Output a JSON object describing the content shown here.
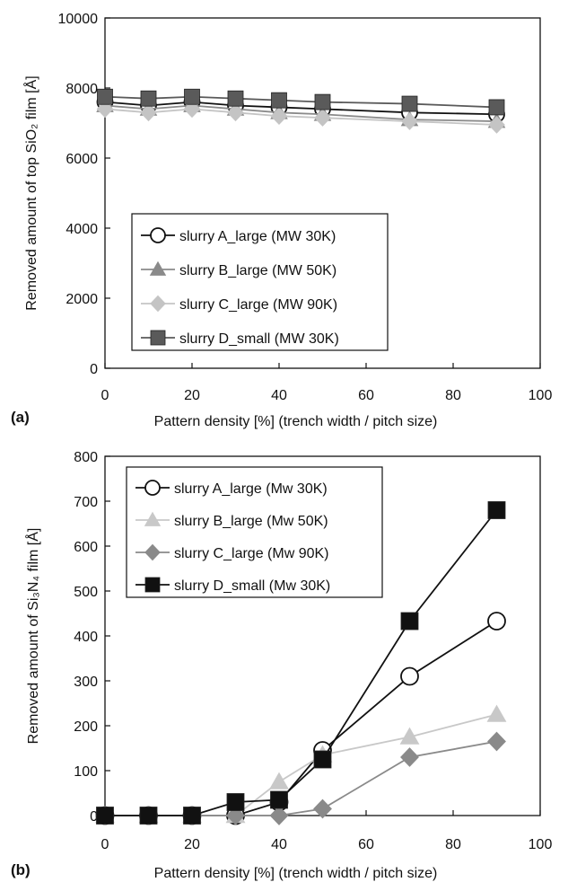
{
  "chart_data": [
    {
      "type": "line",
      "panel_label": "(a)",
      "xlabel": "Pattern density [%] (trench width / pitch size)",
      "ylabel": "Removed amount of top SiO₂ film [Å]",
      "xlim": [
        0,
        100
      ],
      "ylim": [
        0,
        10000
      ],
      "xticks": [
        0,
        20,
        40,
        60,
        80,
        100
      ],
      "yticks": [
        0,
        2000,
        4000,
        6000,
        8000,
        10000
      ],
      "grid": false,
      "legend_position": "lower-left",
      "x": [
        0,
        10,
        20,
        30,
        40,
        50,
        70,
        90
      ],
      "series": [
        {
          "name": "slurry A_large (MW 30K)",
          "marker": "circle-open",
          "color": "#111111",
          "values": [
            7600,
            7500,
            7600,
            7500,
            7450,
            7400,
            7300,
            7250
          ]
        },
        {
          "name": "slurry B_large (MW 50K)",
          "marker": "triangle",
          "color": "#8a8a8a",
          "values": [
            7500,
            7400,
            7500,
            7400,
            7300,
            7250,
            7100,
            7050
          ]
        },
        {
          "name": "slurry C_large (MW 90K)",
          "marker": "diamond",
          "color": "#c4c4c4",
          "values": [
            7400,
            7300,
            7400,
            7300,
            7200,
            7150,
            7050,
            6950
          ]
        },
        {
          "name": "slurry D_small (MW 30K)",
          "marker": "square",
          "color": "#5a5a5a",
          "values": [
            7750,
            7700,
            7750,
            7700,
            7650,
            7600,
            7550,
            7450
          ]
        }
      ]
    },
    {
      "type": "line",
      "panel_label": "(b)",
      "xlabel": "Pattern density [%] (trench width / pitch size)",
      "ylabel": "Removed amount of Si₃N₄ film [Å]",
      "xlim": [
        0,
        100
      ],
      "ylim": [
        0,
        800
      ],
      "xticks": [
        0,
        20,
        40,
        60,
        80,
        100
      ],
      "yticks": [
        0,
        100,
        200,
        300,
        400,
        500,
        600,
        700,
        800
      ],
      "grid": false,
      "legend_position": "upper-left",
      "x": [
        0,
        10,
        20,
        30,
        40,
        50,
        70,
        90
      ],
      "series": [
        {
          "name": "slurry A_large (Mw 30K)",
          "marker": "circle-open",
          "color": "#111111",
          "values": [
            0,
            0,
            0,
            0,
            30,
            145,
            310,
            433
          ]
        },
        {
          "name": "slurry B_large (Mw 50K)",
          "marker": "triangle",
          "color": "#c8c8c8",
          "values": [
            0,
            0,
            0,
            0,
            75,
            135,
            175,
            225
          ]
        },
        {
          "name": "slurry C_large (Mw 90K)",
          "marker": "diamond",
          "color": "#8a8a8a",
          "values": [
            0,
            0,
            0,
            0,
            0,
            15,
            130,
            165
          ]
        },
        {
          "name": "slurry D_small (Mw 30K)",
          "marker": "square",
          "color": "#111111",
          "values": [
            0,
            0,
            0,
            30,
            35,
            125,
            433,
            680
          ]
        }
      ]
    }
  ]
}
